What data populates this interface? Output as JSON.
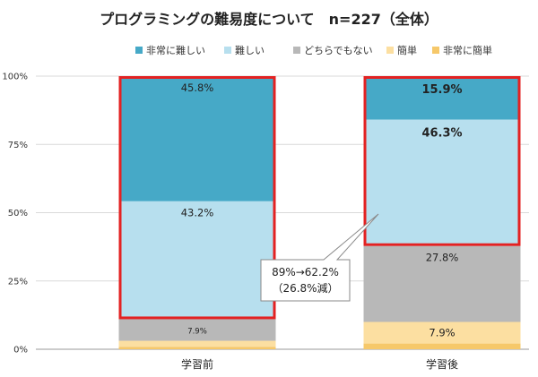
{
  "chart_data": {
    "type": "bar",
    "stacked": true,
    "title": "プログラミングの難易度について　n=227（全体）",
    "categories": [
      "学習前",
      "学習後"
    ],
    "ylim": [
      0,
      100
    ],
    "y_ticks": [
      "0%",
      "25%",
      "50%",
      "75%",
      "100%"
    ],
    "grid": true,
    "legend_position": "top",
    "series": [
      {
        "name": "非常に難しい",
        "color": "#46A9C7",
        "values": [
          45.8,
          15.9
        ],
        "labels": [
          "45.8%",
          "15.9%"
        ],
        "bold": [
          false,
          true
        ]
      },
      {
        "name": "難しい",
        "color": "#B7DFEE",
        "values": [
          43.2,
          46.3
        ],
        "labels": [
          "43.2%",
          "46.3%"
        ],
        "bold": [
          false,
          true
        ]
      },
      {
        "name": "どちらでもない",
        "color": "#B8B8B8",
        "values": [
          7.9,
          27.8
        ],
        "labels": [
          "7.9%",
          "27.8%"
        ],
        "bold": [
          false,
          false
        ]
      },
      {
        "name": "簡単",
        "color": "#FCDFA1",
        "values": [
          2.2,
          7.9
        ],
        "labels": [
          "",
          "7.9%"
        ],
        "bold": [
          false,
          false
        ]
      },
      {
        "name": "非常に簡単",
        "color": "#F6C86A",
        "values": [
          0.9,
          2.1
        ],
        "labels": [
          "",
          ""
        ],
        "bold": [
          false,
          false
        ]
      }
    ],
    "highlight_color": "#E32222",
    "highlights": [
      {
        "category": "学習前",
        "from": 11.0,
        "to": 100
      },
      {
        "category": "学習後",
        "from": 37.8,
        "to": 100
      }
    ],
    "annotation": {
      "line1": "89%→62.2%",
      "line2": "（26.8%減）"
    }
  }
}
